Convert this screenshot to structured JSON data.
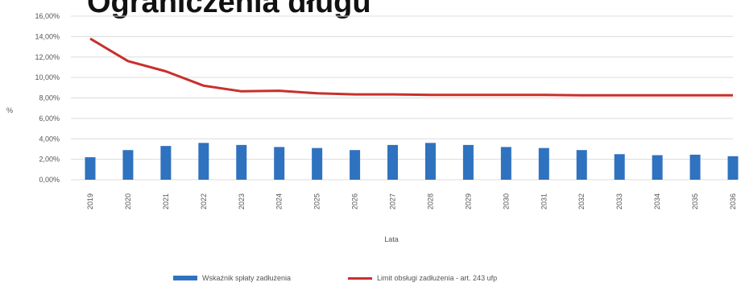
{
  "title": "Ograniczenia długu",
  "colors": {
    "bar": "#2f72bf",
    "line": "#c8302c",
    "grid": "#dcdcdc"
  },
  "chart_data": {
    "type": "bar+line",
    "xlabel": "Lata",
    "ylabel": "%",
    "ylim": [
      0,
      16
    ],
    "yticks": [
      "0,00%",
      "2,00%",
      "4,00%",
      "6,00%",
      "8,00%",
      "10,00%",
      "12,00%",
      "14,00%",
      "16,00%"
    ],
    "categories": [
      "2019",
      "2020",
      "2021",
      "2022",
      "2023",
      "2024",
      "2025",
      "2026",
      "2027",
      "2028",
      "2029",
      "2030",
      "2031",
      "2032",
      "2033",
      "2034",
      "2035",
      "2036"
    ],
    "series": [
      {
        "name": "Wskaźnik spłaty zadłużenia",
        "type": "bar",
        "values": [
          2.2,
          2.9,
          3.3,
          3.6,
          3.4,
          3.2,
          3.1,
          2.9,
          3.4,
          3.6,
          3.4,
          3.2,
          3.1,
          2.9,
          2.5,
          2.4,
          2.45,
          2.3
        ]
      },
      {
        "name": "Limit obsługi zadłużenia - art. 243 ufp",
        "type": "line",
        "values": [
          13.8,
          11.6,
          10.6,
          9.2,
          8.65,
          8.7,
          8.45,
          8.35,
          8.35,
          8.3,
          8.3,
          8.3,
          8.3,
          8.25,
          8.25,
          8.25,
          8.25,
          8.25
        ]
      }
    ],
    "grid": true,
    "legend": "bottom"
  }
}
